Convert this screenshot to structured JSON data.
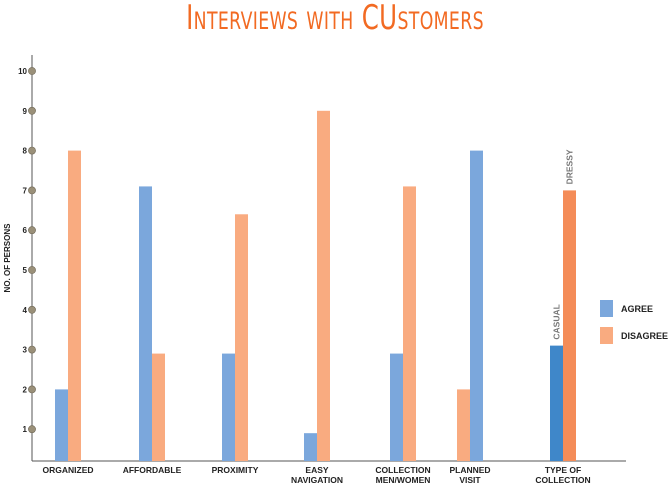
{
  "chart_data": {
    "type": "bar",
    "title": "Interviews with CUstomers",
    "xlabel": "",
    "ylabel": "NO. OF PERSONS",
    "ylim": [
      0,
      10
    ],
    "yticks": [
      "1",
      "2",
      "3",
      "4",
      "5",
      "6",
      "7",
      "8",
      "9",
      "10"
    ],
    "grid": false,
    "legend_position": "right",
    "categories": [
      {
        "label": [
          "ORGANIZED"
        ],
        "agree": 2,
        "disagree": 8
      },
      {
        "label": [
          "AFFORDABLE"
        ],
        "agree": 7.1,
        "disagree": 2.9
      },
      {
        "label": [
          "PROXIMITY"
        ],
        "agree": 2.9,
        "disagree": 6.4
      },
      {
        "label": [
          "EASY",
          "NAVIGATION"
        ],
        "agree": 0.9,
        "disagree": 9
      },
      {
        "label": [
          "COLLECTION",
          "MEN/WOMEN"
        ],
        "agree": 2.9,
        "disagree": 7.1
      },
      {
        "label": [
          "PLANNED",
          "VISIT"
        ],
        "agree": 8,
        "disagree": 2,
        "disagree_first": true
      },
      {
        "label": [
          "TYPE OF",
          "COLLECTION"
        ],
        "agree": 3.1,
        "disagree": 7,
        "agree_annotation": "CASUAL",
        "disagree_annotation": "DRESSY",
        "agree_color": "#3f87c9",
        "disagree_color": "#f48c58"
      }
    ],
    "series": [
      {
        "name": "AGREE",
        "color": "#7ba7dc"
      },
      {
        "name": "DISAGREE",
        "color": "#f9ab80"
      }
    ]
  }
}
